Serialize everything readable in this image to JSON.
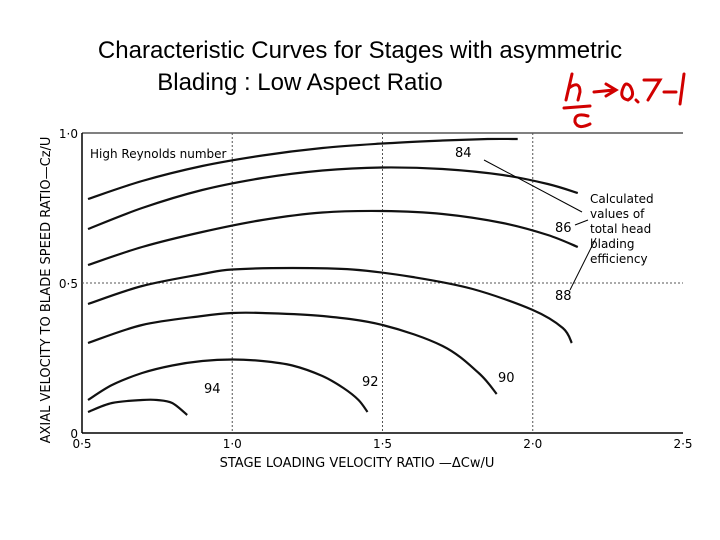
{
  "slide": {
    "title_line1": "Characteristic Curves for Stages with asymmetric",
    "title_line2": "Blading : Low Aspect Ratio",
    "handwritten_note": "h/c → 0.7–1"
  },
  "chart_data": {
    "type": "line",
    "title": "",
    "xlabel": "STAGE LOADING VELOCITY RATIO —ΔCw/U",
    "ylabel": "AXIAL VELOCITY TO BLADE SPEED RATIO—Cz/U",
    "xlim": [
      0.5,
      2.5
    ],
    "ylim": [
      0,
      1.0
    ],
    "x_ticks": [
      "0·5",
      "1·0",
      "1·5",
      "2·0",
      "2·5"
    ],
    "y_ticks": [
      "0",
      "0·5",
      "1·0"
    ],
    "grid": true,
    "annotations": {
      "reynolds": "High Reynolds number",
      "efficiency_note": [
        "Calculated",
        "values of",
        "total head",
        "blading",
        "efficiency"
      ]
    },
    "series": [
      {
        "name": "84",
        "x": [
          0.52,
          0.7,
          0.9,
          1.1,
          1.3,
          1.5,
          1.7,
          1.85,
          1.95
        ],
        "y": [
          0.78,
          0.84,
          0.89,
          0.925,
          0.95,
          0.965,
          0.975,
          0.98,
          0.98
        ]
      },
      {
        "name": "86",
        "x": [
          0.52,
          0.7,
          0.9,
          1.1,
          1.3,
          1.5,
          1.7,
          1.9,
          2.05,
          2.15
        ],
        "y": [
          0.68,
          0.75,
          0.81,
          0.85,
          0.875,
          0.885,
          0.88,
          0.86,
          0.83,
          0.8
        ]
      },
      {
        "name": "88",
        "x": [
          0.52,
          0.7,
          0.9,
          1.1,
          1.3,
          1.5,
          1.7,
          1.9,
          2.05,
          2.15
        ],
        "y": [
          0.56,
          0.62,
          0.67,
          0.71,
          0.735,
          0.74,
          0.73,
          0.7,
          0.66,
          0.62
        ]
      },
      {
        "name": "88",
        "x": [
          0.52,
          0.7,
          0.9,
          1.0,
          1.2,
          1.4,
          1.6,
          1.8,
          2.0,
          2.1,
          2.13
        ],
        "y": [
          0.43,
          0.49,
          0.53,
          0.545,
          0.55,
          0.545,
          0.52,
          0.48,
          0.41,
          0.35,
          0.3
        ]
      },
      {
        "name": "90",
        "x": [
          0.52,
          0.7,
          0.9,
          1.0,
          1.1,
          1.3,
          1.5,
          1.7,
          1.82,
          1.88
        ],
        "y": [
          0.3,
          0.36,
          0.39,
          0.4,
          0.4,
          0.39,
          0.36,
          0.29,
          0.2,
          0.13
        ]
      },
      {
        "name": "92",
        "x": [
          0.52,
          0.6,
          0.7,
          0.8,
          0.9,
          1.0,
          1.1,
          1.2,
          1.3,
          1.37,
          1.42,
          1.45
        ],
        "y": [
          0.11,
          0.16,
          0.2,
          0.225,
          0.24,
          0.245,
          0.24,
          0.225,
          0.19,
          0.15,
          0.11,
          0.07
        ]
      },
      {
        "name": "94",
        "x": [
          0.52,
          0.6,
          0.7,
          0.75,
          0.8,
          0.85
        ],
        "y": [
          0.07,
          0.1,
          0.11,
          0.11,
          0.1,
          0.06
        ]
      }
    ]
  }
}
